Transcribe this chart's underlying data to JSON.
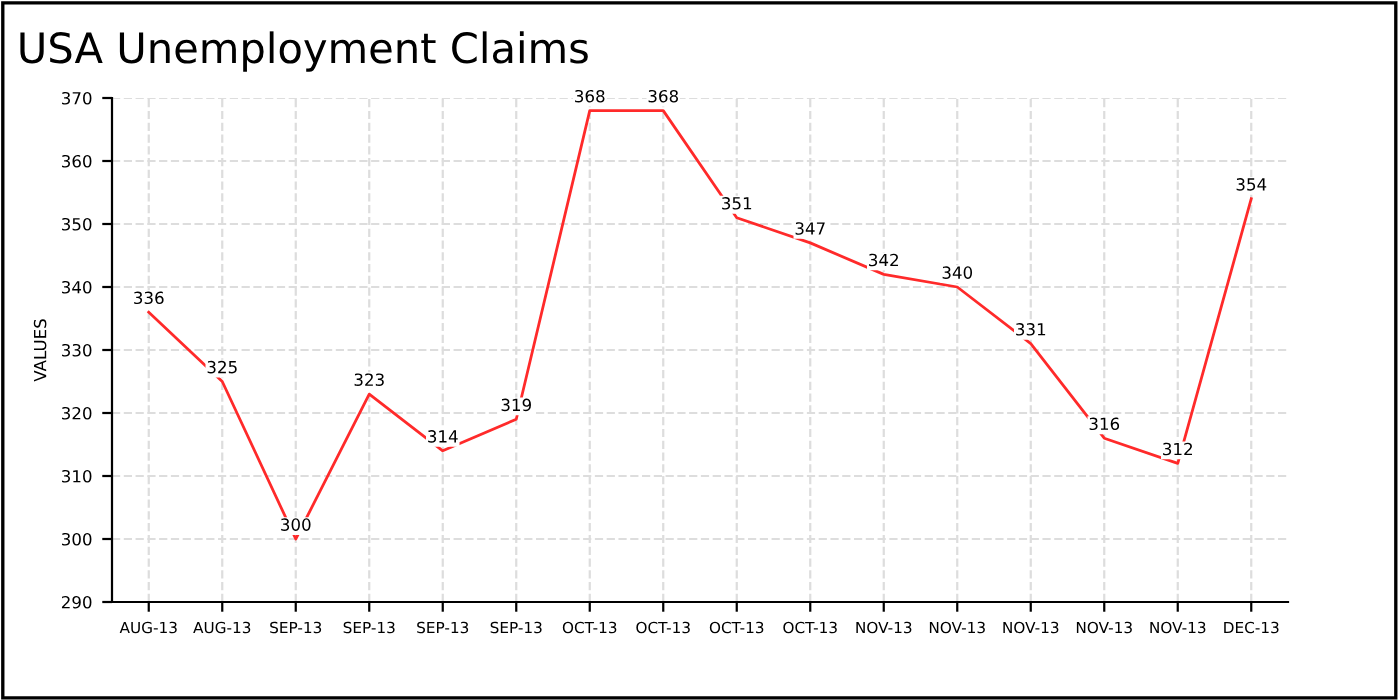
{
  "chart_data": {
    "type": "line",
    "title": "USA Unemployment Claims",
    "ylabel": "VALUES",
    "categories": [
      "AUG-13",
      "AUG-13",
      "SEP-13",
      "SEP-13",
      "SEP-13",
      "SEP-13",
      "OCT-13",
      "OCT-13",
      "OCT-13",
      "OCT-13",
      "NOV-13",
      "NOV-13",
      "NOV-13",
      "NOV-13",
      "NOV-13",
      "DEC-13"
    ],
    "series": [
      {
        "color": "#ff2a2a",
        "values": [
          336,
          325,
          300,
          323,
          314,
          319,
          368,
          368,
          351,
          347,
          342,
          340,
          331,
          316,
          312,
          354
        ]
      }
    ],
    "ylim": [
      290,
      370
    ],
    "yticks": [
      290,
      300,
      310,
      320,
      330,
      340,
      350,
      360,
      370
    ],
    "grid": true,
    "data_labels": true,
    "marker": "none",
    "line_style": "solid"
  }
}
